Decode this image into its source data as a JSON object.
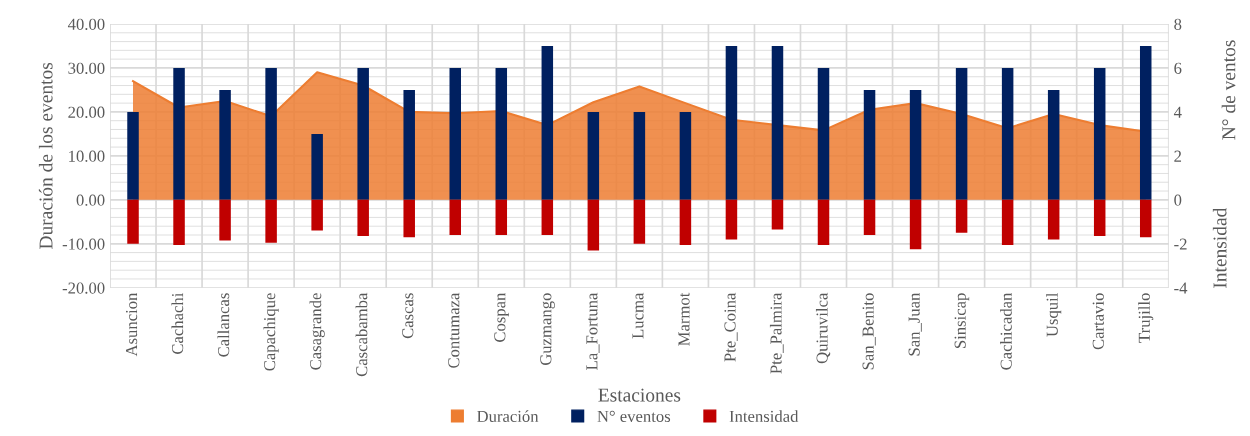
{
  "chart_data": {
    "type": "bar",
    "xlabel": "Estaciones",
    "ylabel": "Duración de los eventos",
    "y2label": "N° de ventos",
    "annotations": [
      "Intensidad"
    ],
    "categories": [
      "Asuncion",
      "Cachachi",
      "Callancas",
      "Capachique",
      "Casagrande",
      "Cascabamba",
      "Cascas",
      "Contumaza",
      "Cospan",
      "Guzmango",
      "La_Fortuna",
      "Lucma",
      "Marmot",
      "Pte_Coina",
      "Pte_Palmira",
      "Quiruvilca",
      "San_Benito",
      "San_Juan",
      "Sinsicap",
      "Cachicadan",
      "Usquil",
      "Cartavio",
      "Trujillo"
    ],
    "series": [
      {
        "name": "Duración",
        "type": "area",
        "color": "#ed7d31",
        "values": [
          27,
          21,
          22.5,
          19,
          29,
          26,
          20,
          19.7,
          20.2,
          17,
          22.2,
          25.8,
          22,
          18.2,
          17,
          15.8,
          20.5,
          22,
          19.5,
          16.3,
          19.5,
          17,
          15.5
        ]
      },
      {
        "name": "N° eventos",
        "axis": "y2",
        "color": "#002060",
        "values": [
          4,
          6,
          5,
          6,
          3,
          6,
          5,
          6,
          6,
          7,
          4,
          4,
          4,
          7,
          7,
          6,
          5,
          5,
          6,
          6,
          5,
          6,
          7
        ]
      },
      {
        "name": "Intensidad",
        "axis": "y2",
        "color": "#c00000",
        "values": [
          -2.0,
          -2.05,
          -1.85,
          -1.95,
          -1.4,
          -1.65,
          -1.7,
          -1.6,
          -1.6,
          -1.6,
          -2.3,
          -2.0,
          -2.05,
          -1.8,
          -1.35,
          -2.05,
          -1.6,
          -2.25,
          -1.5,
          -2.05,
          -1.8,
          -1.65,
          -1.7
        ]
      }
    ],
    "ylim": [
      -20,
      40
    ],
    "yticks": [
      {
        "value": -20,
        "label": "-20.00"
      },
      {
        "value": -10,
        "label": "-10.00"
      },
      {
        "value": 0,
        "label": "0.00"
      },
      {
        "value": 10,
        "label": "10.00"
      },
      {
        "value": 20,
        "label": "20.00"
      },
      {
        "value": 30,
        "label": "30.00"
      },
      {
        "value": 40,
        "label": "40.00"
      }
    ],
    "y2lim": [
      -4,
      8
    ],
    "y2ticks": [
      -4,
      -2,
      0,
      2,
      4,
      6,
      8
    ],
    "stacked": true,
    "grid": true,
    "legend": "bottom"
  }
}
